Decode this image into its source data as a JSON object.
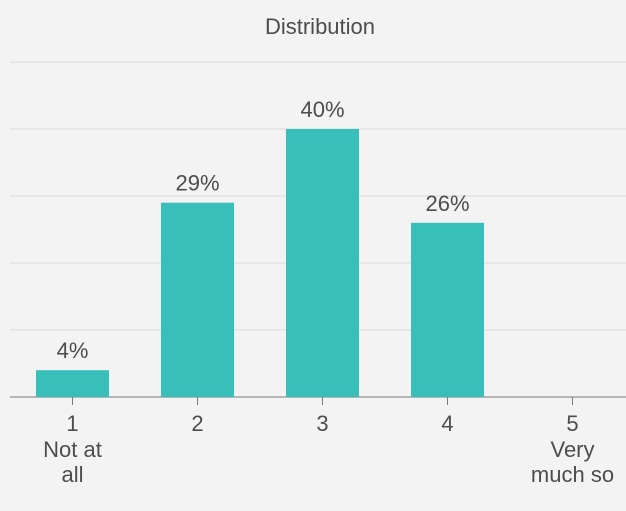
{
  "chart_data": {
    "type": "bar",
    "title": "Distribution",
    "categories": [
      "1",
      "2",
      "3",
      "4",
      "5"
    ],
    "category_sublabels": [
      [
        "Not at",
        "all"
      ],
      [],
      [],
      [],
      [
        "Very",
        "much so"
      ]
    ],
    "values": [
      4,
      29,
      40,
      26,
      0
    ],
    "data_labels": [
      "4%",
      "29%",
      "40%",
      "26%",
      ""
    ],
    "ylim": [
      0,
      50
    ],
    "grid": true,
    "colors": {
      "bar": "#38bfba",
      "grid": "#d9d9d9",
      "axis": "#7a7a7a",
      "text": "#4d4d4d",
      "background": "#f3f3f3"
    }
  }
}
